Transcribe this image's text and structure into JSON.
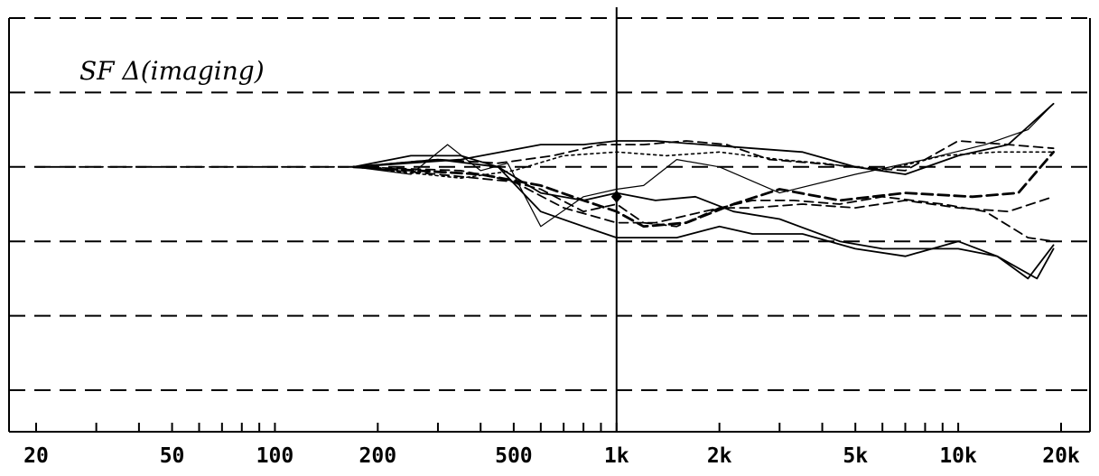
{
  "chart_data": {
    "type": "line",
    "title": "SF Δ(imaging)",
    "xlabel": "",
    "ylabel": "",
    "x_scale": "log",
    "xlim": [
      20,
      20000
    ],
    "ylim": [
      -3,
      2
    ],
    "grid": "horizontal dashed",
    "x_ticks": [
      {
        "value": 20,
        "label": "20"
      },
      {
        "value": 50,
        "label": "50"
      },
      {
        "value": 100,
        "label": "100"
      },
      {
        "value": 200,
        "label": "200"
      },
      {
        "value": 500,
        "label": "500"
      },
      {
        "value": 1000,
        "label": "1k"
      },
      {
        "value": 2000,
        "label": "2k"
      },
      {
        "value": 5000,
        "label": "5k"
      },
      {
        "value": 10000,
        "label": "10k"
      },
      {
        "value": 20000,
        "label": "20k"
      }
    ],
    "grid_y": [
      2,
      1,
      0,
      -1,
      -2,
      -3
    ],
    "cursor": {
      "x": 1000,
      "y": -0.4
    },
    "series": [
      {
        "style": "dashed",
        "x": [
          20,
          35,
          60,
          100,
          150,
          170
        ],
        "y": [
          0,
          0,
          0,
          0,
          0,
          0
        ]
      },
      {
        "style": "solid-thin",
        "x": [
          170,
          250,
          320,
          400,
          480,
          600,
          800,
          1000,
          1200,
          1500,
          2000,
          3000,
          5000,
          8000,
          12000,
          16000,
          19000
        ],
        "y": [
          0,
          -0.1,
          0.3,
          -0.05,
          0.05,
          -0.8,
          -0.4,
          -0.3,
          -0.25,
          0.1,
          0,
          -0.35,
          -0.1,
          0.1,
          0.3,
          0.5,
          0.85
        ]
      },
      {
        "style": "solid",
        "x": [
          170,
          250,
          350,
          450,
          600,
          800,
          1000,
          1500,
          2000,
          2500,
          3500,
          5000,
          7000,
          10000,
          13000,
          16000,
          19000
        ],
        "y": [
          0,
          0.15,
          0.15,
          0,
          -0.6,
          -0.8,
          -0.95,
          -0.95,
          -0.8,
          -0.9,
          -0.9,
          -1.1,
          -1.2,
          -1.0,
          -1.2,
          -1.5,
          -1.05
        ]
      },
      {
        "style": "solid",
        "x": [
          170,
          300,
          450,
          600,
          800,
          1000,
          1300,
          1700,
          2200,
          3000,
          4500,
          6000,
          8000,
          10000,
          13000,
          17000,
          19000
        ],
        "y": [
          0,
          0.1,
          0,
          -0.35,
          -0.45,
          -0.35,
          -0.45,
          -0.4,
          -0.6,
          -0.7,
          -1.0,
          -1.1,
          -1.1,
          -1.1,
          -1.2,
          -1.5,
          -1.1
        ]
      },
      {
        "style": "solid",
        "x": [
          170,
          350,
          600,
          800,
          1000,
          1300,
          1800,
          2500,
          3500,
          5000,
          7000,
          10000,
          14000,
          19000
        ],
        "y": [
          0,
          0.1,
          0.3,
          0.3,
          0.35,
          0.35,
          0.3,
          0.25,
          0.2,
          0,
          -0.1,
          0.15,
          0.3,
          0.85
        ]
      },
      {
        "style": "dashed",
        "x": [
          170,
          300,
          450,
          650,
          900,
          1200,
          1600,
          2100,
          2800,
          3800,
          5000,
          7000,
          10000,
          14000,
          19000
        ],
        "y": [
          0,
          0.1,
          0.05,
          0.15,
          0.3,
          0.3,
          0.35,
          0.3,
          0.1,
          0.05,
          0,
          -0.05,
          0.35,
          0.3,
          0.25
        ]
      },
      {
        "style": "dashed-bold",
        "x": [
          170,
          400,
          600,
          800,
          1000,
          1200,
          1600,
          2200,
          3000,
          4500,
          7000,
          11000,
          15000,
          19000
        ],
        "y": [
          0,
          -0.1,
          -0.25,
          -0.45,
          -0.6,
          -0.8,
          -0.75,
          -0.5,
          -0.3,
          -0.45,
          -0.35,
          -0.4,
          -0.35,
          0.2
        ]
      },
      {
        "style": "dotted",
        "x": [
          170,
          350,
          500,
          700,
          1000,
          1400,
          2000,
          3000,
          4000,
          6000,
          9000,
          13000,
          19000
        ],
        "y": [
          0,
          -0.15,
          -0.05,
          0.15,
          0.2,
          0.15,
          0.2,
          0.1,
          0.05,
          -0.05,
          0.15,
          0.2,
          0.2
        ]
      },
      {
        "style": "dashed",
        "x": [
          170,
          350,
          450,
          600,
          800,
          1000,
          1200,
          1500,
          2000,
          2500,
          3500,
          5000,
          7000,
          10000,
          14000,
          19000
        ],
        "y": [
          0,
          -0.05,
          -0.15,
          -0.3,
          -0.6,
          -0.5,
          -0.75,
          -0.8,
          -0.55,
          -0.55,
          -0.5,
          -0.55,
          -0.45,
          -0.55,
          -0.6,
          -0.4
        ]
      },
      {
        "style": "dashed",
        "x": [
          170,
          300,
          500,
          700,
          1000,
          1300,
          1800,
          2500,
          3300,
          4500,
          6000,
          9000,
          12000,
          16000,
          19000
        ],
        "y": [
          0,
          -0.1,
          -0.2,
          -0.55,
          -0.75,
          -0.75,
          -0.6,
          -0.45,
          -0.45,
          -0.5,
          -0.4,
          -0.5,
          -0.6,
          -0.95,
          -1.0
        ]
      }
    ]
  }
}
